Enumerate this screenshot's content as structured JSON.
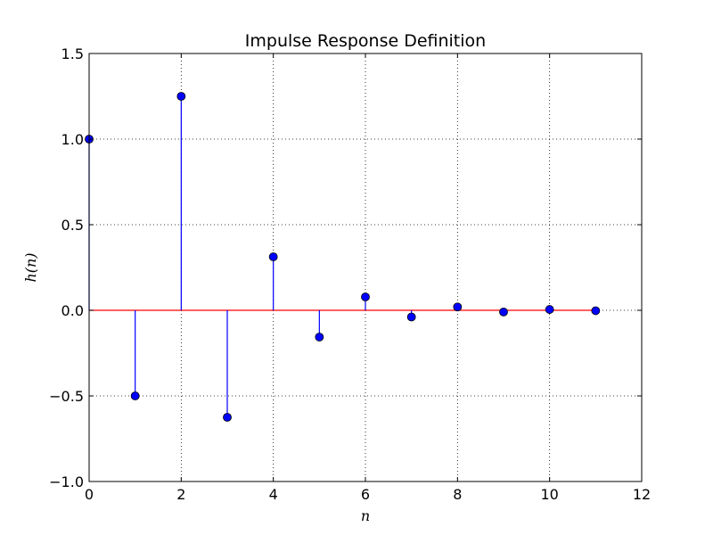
{
  "chart_data": {
    "type": "stem",
    "title": "Impulse Response Definition",
    "xlabel": "n",
    "ylabel": "h(n)",
    "xlim": [
      0,
      12
    ],
    "ylim": [
      -1.0,
      1.5
    ],
    "xticks": [
      "0",
      "2",
      "4",
      "6",
      "8",
      "10",
      "12"
    ],
    "yticks": [
      "−1.0",
      "−0.5",
      "0.0",
      "0.5",
      "1.0",
      "1.5"
    ],
    "grid": true,
    "x": [
      0,
      1,
      2,
      3,
      4,
      5,
      6,
      7,
      8,
      9,
      10,
      11
    ],
    "values": [
      1.0,
      -0.5,
      1.25,
      -0.625,
      0.3125,
      -0.15625,
      0.078125,
      -0.0390625,
      0.01953125,
      -0.009765625,
      0.0048828125,
      -0.00244140625
    ],
    "colors": {
      "stem": "#0000ff",
      "marker": "#0000ff",
      "baseline": "#ff0000"
    }
  }
}
